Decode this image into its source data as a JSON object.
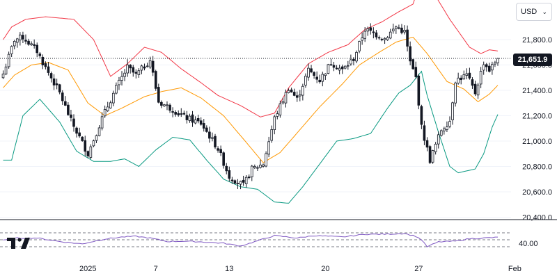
{
  "header": {
    "currency": "USD"
  },
  "price_badge": {
    "value": "21,651.9"
  },
  "colors": {
    "upper_band": "#f23645",
    "basis": "#ff9800",
    "lower_band": "#089981",
    "rsi": "#7e57c2",
    "candle": "#131722",
    "grid_dots": "#131722"
  },
  "logo": {
    "icon": "tradingview-logo-icon"
  },
  "chart_data": [
    {
      "type": "candlestick",
      "indicators": [
        "Bollinger Bands upper",
        "Bollinger Bands basis",
        "Bollinger Bands lower"
      ],
      "last_price": 21651.9,
      "ylim": [
        20400,
        22250
      ],
      "y_tick_labels": [
        "21,800.0",
        "21,600.0",
        "21,400.0",
        "21,200.0",
        "21,000.0",
        "20,800.0",
        "20,600.0",
        "20,400.0"
      ],
      "y_ticks": [
        21800,
        21600,
        21400,
        21200,
        21000,
        20800,
        20600,
        20400
      ],
      "x_tick_labels": [
        "2025",
        "7",
        "13",
        "20",
        "27",
        "Feb"
      ],
      "x_tick_index": [
        30,
        54,
        80,
        114,
        147,
        181
      ],
      "n_bars": 176,
      "anchors": {
        "close": [
          [
            0,
            21530
          ],
          [
            4,
            21800
          ],
          [
            7,
            21820
          ],
          [
            12,
            21710
          ],
          [
            14,
            21620
          ],
          [
            20,
            21380
          ],
          [
            24,
            21160
          ],
          [
            30,
            20900
          ],
          [
            35,
            21180
          ],
          [
            40,
            21420
          ],
          [
            44,
            21580
          ],
          [
            47,
            21520
          ],
          [
            52,
            21640
          ],
          [
            55,
            21310
          ],
          [
            60,
            21250
          ],
          [
            64,
            21190
          ],
          [
            70,
            21140
          ],
          [
            76,
            20940
          ],
          [
            80,
            20720
          ],
          [
            85,
            20650
          ],
          [
            88,
            20780
          ],
          [
            92,
            20820
          ],
          [
            96,
            21180
          ],
          [
            101,
            21420
          ],
          [
            104,
            21330
          ],
          [
            108,
            21560
          ],
          [
            112,
            21480
          ],
          [
            116,
            21620
          ],
          [
            120,
            21560
          ],
          [
            124,
            21650
          ],
          [
            128,
            21880
          ],
          [
            132,
            21840
          ],
          [
            135,
            21810
          ],
          [
            139,
            21900
          ],
          [
            142,
            21860
          ],
          [
            144,
            21620
          ],
          [
            146,
            21500
          ],
          [
            148,
            21110
          ],
          [
            151,
            20850
          ],
          [
            155,
            21090
          ],
          [
            158,
            21160
          ],
          [
            160,
            21480
          ],
          [
            164,
            21520
          ],
          [
            167,
            21380
          ],
          [
            170,
            21620
          ],
          [
            172,
            21560
          ],
          [
            175,
            21651.9
          ]
        ],
        "upper": [
          [
            0,
            21800
          ],
          [
            3,
            21900
          ],
          [
            8,
            21960
          ],
          [
            15,
            21980
          ],
          [
            25,
            21960
          ],
          [
            32,
            21800
          ],
          [
            38,
            21510
          ],
          [
            44,
            21610
          ],
          [
            50,
            21740
          ],
          [
            56,
            21700
          ],
          [
            63,
            21570
          ],
          [
            70,
            21460
          ],
          [
            76,
            21360
          ],
          [
            84,
            21280
          ],
          [
            91,
            21190
          ],
          [
            96,
            21220
          ],
          [
            101,
            21420
          ],
          [
            108,
            21610
          ],
          [
            115,
            21700
          ],
          [
            122,
            21760
          ],
          [
            128,
            21880
          ],
          [
            134,
            21940
          ],
          [
            140,
            22020
          ],
          [
            145,
            22080
          ],
          [
            148,
            22280
          ],
          [
            152,
            22180
          ],
          [
            158,
            21960
          ],
          [
            165,
            21740
          ],
          [
            169,
            21690
          ],
          [
            172,
            21720
          ],
          [
            175,
            21710
          ]
        ],
        "basis": [
          [
            0,
            21420
          ],
          [
            4,
            21520
          ],
          [
            10,
            21600
          ],
          [
            16,
            21620
          ],
          [
            23,
            21560
          ],
          [
            30,
            21300
          ],
          [
            36,
            21200
          ],
          [
            42,
            21260
          ],
          [
            50,
            21350
          ],
          [
            56,
            21390
          ],
          [
            63,
            21420
          ],
          [
            70,
            21340
          ],
          [
            78,
            21200
          ],
          [
            86,
            20990
          ],
          [
            92,
            20830
          ],
          [
            98,
            20910
          ],
          [
            105,
            21090
          ],
          [
            112,
            21270
          ],
          [
            120,
            21450
          ],
          [
            126,
            21600
          ],
          [
            133,
            21700
          ],
          [
            139,
            21780
          ],
          [
            145,
            21820
          ],
          [
            150,
            21690
          ],
          [
            157,
            21470
          ],
          [
            163,
            21410
          ],
          [
            168,
            21310
          ],
          [
            172,
            21370
          ],
          [
            175,
            21440
          ]
        ],
        "lower": [
          [
            0,
            20850
          ],
          [
            3,
            20850
          ],
          [
            7,
            21200
          ],
          [
            13,
            21330
          ],
          [
            20,
            21150
          ],
          [
            26,
            20920
          ],
          [
            32,
            20840
          ],
          [
            38,
            20840
          ],
          [
            43,
            20860
          ],
          [
            48,
            20800
          ],
          [
            54,
            20930
          ],
          [
            60,
            21030
          ],
          [
            66,
            21010
          ],
          [
            72,
            20850
          ],
          [
            78,
            20700
          ],
          [
            84,
            20640
          ],
          [
            90,
            20620
          ],
          [
            96,
            20520
          ],
          [
            101,
            20510
          ],
          [
            106,
            20640
          ],
          [
            112,
            20820
          ],
          [
            118,
            21000
          ],
          [
            124,
            21020
          ],
          [
            130,
            21060
          ],
          [
            136,
            21260
          ],
          [
            140,
            21380
          ],
          [
            144,
            21440
          ],
          [
            148,
            21550
          ],
          [
            150,
            21360
          ],
          [
            154,
            21070
          ],
          [
            158,
            20800
          ],
          [
            161,
            20750
          ],
          [
            167,
            20780
          ],
          [
            170,
            20900
          ],
          [
            173,
            21110
          ],
          [
            175,
            21210
          ]
        ]
      }
    },
    {
      "type": "line",
      "name": "RSI",
      "ylim": [
        0,
        100
      ],
      "y_tick_labels": [
        "40.00"
      ],
      "y_ticks": [
        40
      ],
      "guide_levels": [
        70,
        50,
        30
      ],
      "anchors": [
        [
          0,
          48
        ],
        [
          5,
          55
        ],
        [
          12,
          55
        ],
        [
          20,
          45
        ],
        [
          28,
          38
        ],
        [
          30,
          42
        ],
        [
          36,
          52
        ],
        [
          42,
          58
        ],
        [
          47,
          60
        ],
        [
          52,
          55
        ],
        [
          58,
          45
        ],
        [
          64,
          46
        ],
        [
          70,
          44
        ],
        [
          78,
          40
        ],
        [
          84,
          32
        ],
        [
          90,
          47
        ],
        [
          96,
          62
        ],
        [
          104,
          55
        ],
        [
          110,
          62
        ],
        [
          120,
          58
        ],
        [
          128,
          66
        ],
        [
          135,
          66
        ],
        [
          142,
          68
        ],
        [
          146,
          60
        ],
        [
          148,
          50
        ],
        [
          150,
          30
        ],
        [
          154,
          44
        ],
        [
          160,
          46
        ],
        [
          165,
          53
        ],
        [
          170,
          55
        ],
        [
          175,
          57
        ]
      ]
    }
  ]
}
